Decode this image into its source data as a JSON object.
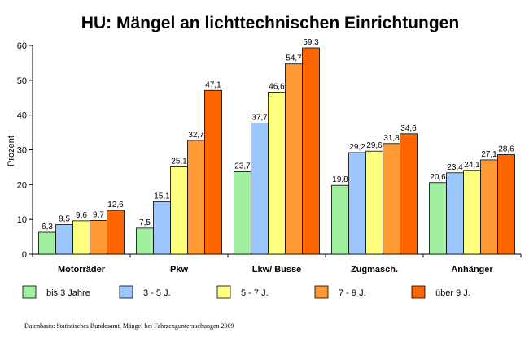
{
  "chart_data": {
    "type": "bar",
    "title": "HU: Mängel an lichttechnischen Einrichtungen",
    "xlabel": "",
    "ylabel": "Prozent",
    "ylim": [
      0,
      60
    ],
    "yticks": [
      0,
      10,
      20,
      30,
      40,
      50,
      60
    ],
    "categories": [
      "Motorräder",
      "Pkw",
      "Lkw/ Busse",
      "Zugmasch.",
      "Anhänger"
    ],
    "series": [
      {
        "name": "bis 3 Jahre",
        "color": "#a0f0a0",
        "values": [
          6.3,
          7.5,
          23.7,
          19.8,
          20.6
        ],
        "labels": [
          "6,3",
          "7,5",
          "23,7",
          "19,8",
          "20,6"
        ]
      },
      {
        "name": "3 - 5 J.",
        "color": "#9cc8ff",
        "values": [
          8.5,
          15.1,
          37.7,
          29.2,
          23.4
        ],
        "labels": [
          "8,5",
          "15,1",
          "37,7",
          "29,2",
          "23,4"
        ]
      },
      {
        "name": "5 - 7 J.",
        "color": "#ffff80",
        "values": [
          9.6,
          25.1,
          46.6,
          29.6,
          24.1
        ],
        "labels": [
          "9,6",
          "25,1",
          "46,6",
          "29,6",
          "24,1"
        ]
      },
      {
        "name": "7 - 9 J.",
        "color": "#ff9933",
        "values": [
          9.7,
          32.7,
          54.7,
          31.8,
          27.1
        ],
        "labels": [
          "9,7",
          "32,7",
          "54,7",
          "31,8",
          "27,1"
        ]
      },
      {
        "name": "über 9 J.",
        "color": "#ff6600",
        "values": [
          12.6,
          47.1,
          59.3,
          34.6,
          28.6
        ],
        "labels": [
          "12,6",
          "47,1",
          "59,3",
          "34,6",
          "28,6"
        ]
      }
    ],
    "grid": false,
    "legend_position": "bottom"
  },
  "source_note": "Datenbasis: Statistisches Bundesamt, Mängel bei Fahrzeuguntersuchungen 2009"
}
